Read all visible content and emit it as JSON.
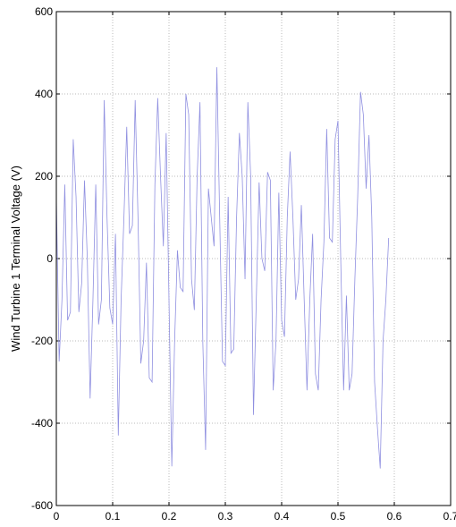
{
  "chart_data": {
    "type": "line",
    "ylabel": "Wind Turbine 1 Terminal Voltage (V)",
    "x": [
      0,
      0.005,
      0.01,
      0.015,
      0.02,
      0.025,
      0.03,
      0.035,
      0.04,
      0.045,
      0.05,
      0.055,
      0.06,
      0.065,
      0.07,
      0.075,
      0.08,
      0.085,
      0.09,
      0.095,
      0.1,
      0.105,
      0.11,
      0.115,
      0.12,
      0.125,
      0.13,
      0.135,
      0.14,
      0.145,
      0.15,
      0.155,
      0.16,
      0.165,
      0.17,
      0.175,
      0.18,
      0.185,
      0.19,
      0.195,
      0.2,
      0.205,
      0.21,
      0.215,
      0.22,
      0.225,
      0.23,
      0.235,
      0.24,
      0.245,
      0.25,
      0.255,
      0.26,
      0.265,
      0.27,
      0.275,
      0.28,
      0.285,
      0.29,
      0.295,
      0.3,
      0.305,
      0.31,
      0.315,
      0.32,
      0.325,
      0.33,
      0.335,
      0.34,
      0.345,
      0.35,
      0.355,
      0.36,
      0.365,
      0.37,
      0.375,
      0.38,
      0.385,
      0.39,
      0.395,
      0.4,
      0.405,
      0.41,
      0.415,
      0.42,
      0.425,
      0.43,
      0.435,
      0.44,
      0.445,
      0.45,
      0.455,
      0.46,
      0.465,
      0.47,
      0.475,
      0.48,
      0.485,
      0.49,
      0.495,
      0.5,
      0.505,
      0.51,
      0.515,
      0.52,
      0.525,
      0.53,
      0.535,
      0.54,
      0.545,
      0.55,
      0.555,
      0.56,
      0.565,
      0.57,
      0.575,
      0.58,
      0.585,
      0.59
    ],
    "series": [
      {
        "color": "#8f8fe0",
        "values": [
          150,
          -250,
          -100,
          180,
          -150,
          -130,
          290,
          150,
          -130,
          -60,
          190,
          0,
          -340,
          -100,
          180,
          -160,
          -100,
          385,
          100,
          -120,
          -160,
          60,
          -430,
          -100,
          100,
          320,
          60,
          80,
          385,
          100,
          -255,
          -200,
          -10,
          -290,
          -300,
          180,
          390,
          200,
          30,
          305,
          -100,
          -505,
          -200,
          20,
          -70,
          -80,
          400,
          350,
          -50,
          -125,
          200,
          380,
          -200,
          -465,
          170,
          100,
          30,
          465,
          100,
          -250,
          -260,
          150,
          -230,
          -220,
          100,
          305,
          200,
          -50,
          380,
          200,
          -380,
          -100,
          185,
          0,
          -30,
          210,
          190,
          -320,
          -200,
          160,
          -150,
          -190,
          100,
          260,
          100,
          -100,
          -50,
          130,
          -100,
          -320,
          -100,
          60,
          -280,
          -320,
          -100,
          40,
          315,
          50,
          40,
          290,
          335,
          -10,
          -320,
          -90,
          -320,
          -280,
          -50,
          150,
          405,
          350,
          170,
          300,
          100,
          -300,
          -410,
          -510,
          -200,
          -100,
          50
        ]
      }
    ],
    "xlim": [
      0,
      0.7
    ],
    "xticks": [
      0,
      0.1,
      0.2,
      0.3,
      0.4,
      0.5,
      0.6,
      0.7
    ],
    "ylim": [
      -600,
      600
    ],
    "yticks": [
      -600,
      -400,
      -200,
      0,
      200,
      400,
      600
    ],
    "grid": true
  }
}
